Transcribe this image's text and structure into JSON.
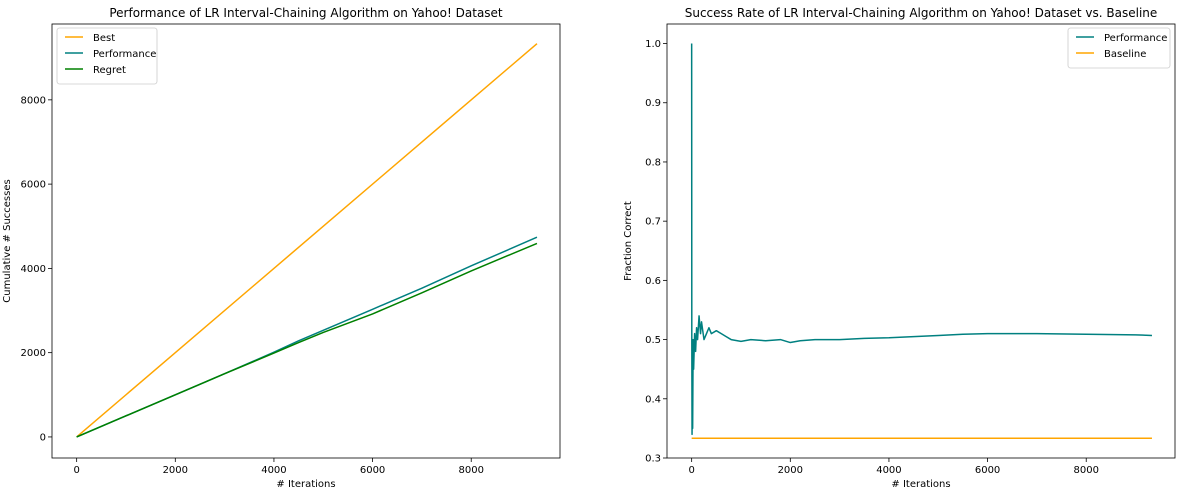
{
  "colors": {
    "best": "#FFA500",
    "performance": "#008080",
    "regret": "#008000",
    "baseline": "#FFA500"
  },
  "chart_data": [
    {
      "type": "line",
      "title": "Performance of LR Interval-Chaining Algorithm on Yahoo! Dataset",
      "xlabel": "# Iterations",
      "ylabel": "Cumulative # Successes",
      "xlim": [
        -500,
        9800
      ],
      "ylim": [
        -500,
        9800
      ],
      "xticks": [
        0,
        2000,
        4000,
        6000,
        8000
      ],
      "yticks": [
        0,
        2000,
        4000,
        6000,
        8000
      ],
      "legend_position": "upper left",
      "grid": false,
      "series": [
        {
          "name": "Best",
          "color": "#FFA500",
          "x": [
            0,
            9333
          ],
          "y": [
            0,
            9333
          ]
        },
        {
          "name": "Performance",
          "color": "#008080",
          "x": [
            0,
            1000,
            2000,
            3000,
            4000,
            4500,
            5000,
            6000,
            7000,
            8000,
            9333
          ],
          "y": [
            0,
            500,
            1000,
            1500,
            2010,
            2280,
            2530,
            3030,
            3530,
            4060,
            4740
          ]
        },
        {
          "name": "Regret",
          "color": "#008000",
          "x": [
            0,
            1000,
            2000,
            3000,
            4000,
            4500,
            5000,
            6000,
            7000,
            8000,
            9333
          ],
          "y": [
            0,
            500,
            1000,
            1500,
            1990,
            2240,
            2480,
            2920,
            3420,
            3940,
            4593
          ]
        }
      ]
    },
    {
      "type": "line",
      "title": "Success Rate of LR Interval-Chaining Algorithm on Yahoo! Dataset vs. Baseline",
      "xlabel": "# Iterations",
      "ylabel": "Fraction Correct",
      "xlim": [
        -500,
        9800
      ],
      "ylim": [
        0.3,
        1.033
      ],
      "xticks": [
        0,
        2000,
        4000,
        6000,
        8000
      ],
      "yticks": [
        0.3,
        0.4,
        0.5,
        0.6,
        0.7,
        0.8,
        0.9,
        1.0
      ],
      "legend_position": "upper right",
      "grid": false,
      "series": [
        {
          "name": "Performance",
          "color": "#008080",
          "x": [
            0,
            3,
            8,
            15,
            20,
            30,
            40,
            60,
            80,
            100,
            120,
            150,
            180,
            200,
            250,
            300,
            350,
            400,
            500,
            600,
            700,
            800,
            1000,
            1200,
            1500,
            1800,
            2000,
            2200,
            2500,
            3000,
            3500,
            4000,
            4500,
            5000,
            5500,
            6000,
            6500,
            7000,
            8000,
            9000,
            9333
          ],
          "y": [
            1.0,
            0.5,
            0.34,
            0.42,
            0.35,
            0.5,
            0.45,
            0.51,
            0.48,
            0.52,
            0.5,
            0.54,
            0.51,
            0.53,
            0.5,
            0.51,
            0.52,
            0.51,
            0.515,
            0.51,
            0.505,
            0.5,
            0.497,
            0.5,
            0.498,
            0.5,
            0.495,
            0.498,
            0.5,
            0.5,
            0.502,
            0.503,
            0.505,
            0.507,
            0.509,
            0.51,
            0.51,
            0.51,
            0.509,
            0.508,
            0.507
          ]
        },
        {
          "name": "Baseline",
          "color": "#FFA500",
          "x": [
            0,
            9333
          ],
          "y": [
            0.3333,
            0.3333
          ]
        }
      ]
    }
  ]
}
